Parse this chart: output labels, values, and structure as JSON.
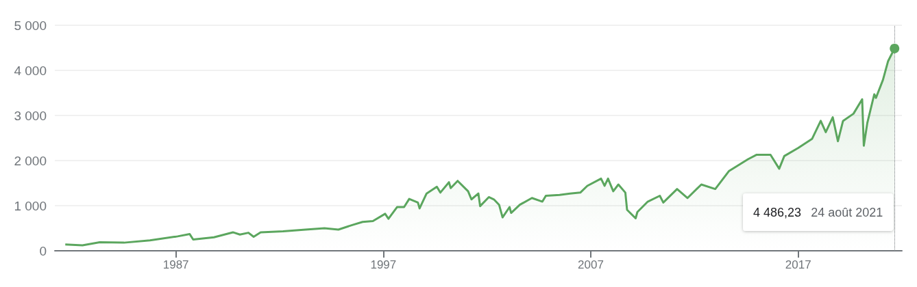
{
  "chart_data": {
    "type": "area",
    "x": [
      "1981-09",
      "1982-07",
      "1983-05",
      "1984-07",
      "1985-10",
      "1987-02",
      "1987-09",
      "1987-11",
      "1988-11",
      "1989-10",
      "1990-02",
      "1990-07",
      "1990-10",
      "1991-02",
      "1992-03",
      "1993-04",
      "1994-03",
      "1994-11",
      "1995-07",
      "1996-01",
      "1996-07",
      "1997-02",
      "1997-04",
      "1997-09",
      "1998-01",
      "1998-04",
      "1998-09",
      "1998-10",
      "1999-02",
      "1999-08",
      "1999-10",
      "2000-03",
      "2000-04",
      "2000-08",
      "2001-02",
      "2001-04",
      "2001-08",
      "2001-09",
      "2002-02",
      "2002-05",
      "2002-08",
      "2002-10",
      "2003-02",
      "2003-03",
      "2003-08",
      "2004-03",
      "2004-09",
      "2004-11",
      "2005-07",
      "2006-01",
      "2006-07",
      "2006-11",
      "2007-07",
      "2007-09",
      "2007-11",
      "2008-02",
      "2008-05",
      "2008-09",
      "2008-10",
      "2009-03",
      "2009-04",
      "2009-10",
      "2010-05",
      "2010-07",
      "2011-03",
      "2011-09",
      "2012-05",
      "2013-01",
      "2013-09",
      "2014-08",
      "2015-01",
      "2015-09",
      "2016-02",
      "2016-05",
      "2017-01",
      "2017-09",
      "2018-02",
      "2018-05",
      "2018-09",
      "2018-12",
      "2019-03",
      "2019-09",
      "2020-02",
      "2020-03",
      "2020-05",
      "2020-09",
      "2020-10",
      "2021-02",
      "2021-05",
      "2021-08-24"
    ],
    "values": [
      140,
      120,
      190,
      180,
      230,
      320,
      370,
      250,
      300,
      410,
      360,
      400,
      310,
      410,
      430,
      470,
      500,
      470,
      570,
      640,
      660,
      820,
      710,
      970,
      970,
      1150,
      1070,
      940,
      1270,
      1420,
      1290,
      1520,
      1390,
      1550,
      1320,
      1140,
      1270,
      990,
      1190,
      1140,
      1020,
      740,
      970,
      840,
      1020,
      1170,
      1090,
      1220,
      1240,
      1270,
      1290,
      1440,
      1600,
      1440,
      1600,
      1320,
      1470,
      1290,
      910,
      720,
      860,
      1090,
      1220,
      1070,
      1370,
      1170,
      1470,
      1370,
      1770,
      2030,
      2130,
      2130,
      1820,
      2100,
      2280,
      2480,
      2880,
      2630,
      2960,
      2430,
      2880,
      3040,
      3360,
      2330,
      2830,
      3470,
      3390,
      3790,
      4200,
      4486.23
    ],
    "color": "#5ba65e",
    "xlim": [
      "1981-03",
      "2022-01"
    ],
    "xticks": [
      "1987",
      "1997",
      "2007",
      "2017"
    ],
    "ylim": [
      0,
      5000
    ],
    "yticks": [
      {
        "value": 0,
        "label": "0"
      },
      {
        "value": 1000,
        "label": "1 000"
      },
      {
        "value": 2000,
        "label": "2 000"
      },
      {
        "value": 3000,
        "label": "3 000"
      },
      {
        "value": 4000,
        "label": "4 000"
      },
      {
        "value": 5000,
        "label": "5 000"
      }
    ],
    "grid": "y",
    "marker": "none",
    "line_style": "solid",
    "ref_lines": [
      {
        "axis": "x",
        "value": "2021-08-24",
        "color": "#70757a",
        "line_style": "dotted"
      }
    ],
    "annotations": [
      "4 486,23",
      "24 août 2021"
    ]
  }
}
